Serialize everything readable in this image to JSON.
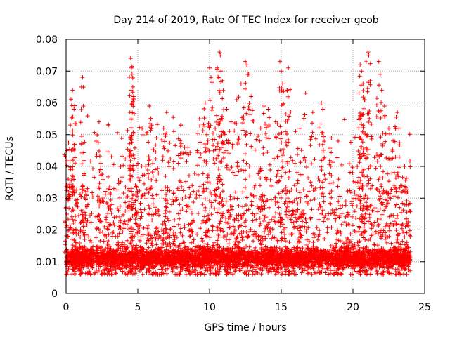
{
  "chart_data": {
    "type": "scatter",
    "title": "Day 214 of 2019, Rate Of TEC Index for receiver geob",
    "xlabel": "GPS time / hours",
    "ylabel": "ROTI / TECUs",
    "xlim": [
      0,
      25
    ],
    "ylim": [
      0,
      0.08
    ],
    "x_ticks": [
      "0",
      "5",
      "10",
      "15",
      "20",
      "25"
    ],
    "y_ticks": [
      "0",
      "0.01",
      "0.02",
      "0.03",
      "0.04",
      "0.05",
      "0.06",
      "0.07",
      "0.08"
    ],
    "grid": true,
    "marker": "+",
    "marker_color": "#ff0000",
    "series": [
      {
        "name": "ROTI",
        "coverage_hours": [
          0,
          24
        ],
        "baseline_values": [
          0.006,
          0.014
        ],
        "points": [
          [
            0.05,
            0.045
          ],
          [
            0.15,
            0.036
          ],
          [
            0.3,
            0.053
          ],
          [
            0.45,
            0.064
          ],
          [
            0.55,
            0.058
          ],
          [
            0.6,
            0.047
          ],
          [
            1.15,
            0.068
          ],
          [
            1.2,
            0.059
          ],
          [
            1.4,
            0.031
          ],
          [
            2.3,
            0.054
          ],
          [
            2.4,
            0.039
          ],
          [
            2.8,
            0.024
          ],
          [
            3.2,
            0.028
          ],
          [
            3.8,
            0.04
          ],
          [
            4.5,
            0.074
          ],
          [
            4.55,
            0.071
          ],
          [
            4.6,
            0.069
          ],
          [
            4.65,
            0.065
          ],
          [
            4.7,
            0.062
          ],
          [
            4.45,
            0.057
          ],
          [
            5.0,
            0.041
          ],
          [
            5.3,
            0.052
          ],
          [
            5.8,
            0.059
          ],
          [
            5.9,
            0.055
          ],
          [
            6.3,
            0.049
          ],
          [
            6.8,
            0.052
          ],
          [
            7.0,
            0.057
          ],
          [
            7.5,
            0.051
          ],
          [
            8.0,
            0.053
          ],
          [
            8.5,
            0.046
          ],
          [
            9.3,
            0.055
          ],
          [
            9.7,
            0.06
          ],
          [
            9.8,
            0.05
          ],
          [
            10.0,
            0.071
          ],
          [
            10.1,
            0.068
          ],
          [
            10.5,
            0.056
          ],
          [
            10.7,
            0.076
          ],
          [
            10.75,
            0.075
          ],
          [
            10.8,
            0.07
          ],
          [
            10.9,
            0.067
          ],
          [
            11.2,
            0.058
          ],
          [
            11.5,
            0.054
          ],
          [
            11.9,
            0.061
          ],
          [
            12.2,
            0.066
          ],
          [
            12.5,
            0.073
          ],
          [
            12.6,
            0.072
          ],
          [
            12.9,
            0.062
          ],
          [
            13.5,
            0.048
          ],
          [
            13.8,
            0.059
          ],
          [
            14.1,
            0.058
          ],
          [
            14.6,
            0.054
          ],
          [
            14.9,
            0.073
          ],
          [
            15.0,
            0.07
          ],
          [
            15.1,
            0.066
          ],
          [
            15.4,
            0.064
          ],
          [
            15.5,
            0.071
          ],
          [
            16.0,
            0.051
          ],
          [
            16.3,
            0.052
          ],
          [
            16.7,
            0.063
          ],
          [
            17.2,
            0.057
          ],
          [
            17.8,
            0.06
          ],
          [
            17.9,
            0.058
          ],
          [
            18.5,
            0.049
          ],
          [
            19.0,
            0.036
          ],
          [
            19.5,
            0.029
          ],
          [
            20.3,
            0.04
          ],
          [
            20.5,
            0.072
          ],
          [
            20.6,
            0.07
          ],
          [
            20.7,
            0.066
          ],
          [
            20.8,
            0.061
          ],
          [
            20.55,
            0.056
          ],
          [
            21.05,
            0.076
          ],
          [
            21.1,
            0.075
          ],
          [
            21.2,
            0.067
          ],
          [
            21.8,
            0.073
          ],
          [
            21.9,
            0.069
          ],
          [
            22.0,
            0.064
          ],
          [
            22.2,
            0.059
          ],
          [
            22.5,
            0.052
          ],
          [
            22.8,
            0.048
          ],
          [
            23.1,
            0.057
          ],
          [
            23.2,
            0.052
          ],
          [
            23.6,
            0.04
          ],
          [
            23.8,
            0.032
          ]
        ]
      }
    ]
  }
}
